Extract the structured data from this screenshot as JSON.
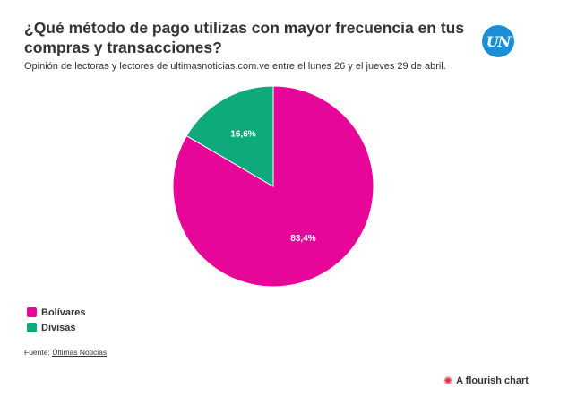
{
  "header": {
    "title": "¿Qué método de pago utilizas con mayor frecuencia en tus compras y transacciones?",
    "subtitle": "Opinión de lectoras y lectores de ultimasnoticias.com.ve entre el lunes 26 y el jueves 29 de abril.",
    "logo_text": "UN"
  },
  "chart_data": {
    "type": "pie",
    "slices": [
      {
        "name": "Bolívares",
        "value": 83.4,
        "label": "83,4%",
        "color": "#e6079a"
      },
      {
        "name": "Divisas",
        "value": 16.6,
        "label": "16,6%",
        "color": "#0eaa7b"
      }
    ],
    "start_angle_deg": 0,
    "direction": "clockwise",
    "legend_position": "bottom-left"
  },
  "legend": {
    "items": [
      {
        "label": "Bolívares",
        "color": "#e6079a"
      },
      {
        "label": "Divisas",
        "color": "#0eaa7b"
      }
    ]
  },
  "footer": {
    "source_prefix": "Fuente: ",
    "source_name": "Últimas Noticias",
    "credit": "A flourish chart",
    "credit_icon": "flourish-asterisk-icon"
  }
}
